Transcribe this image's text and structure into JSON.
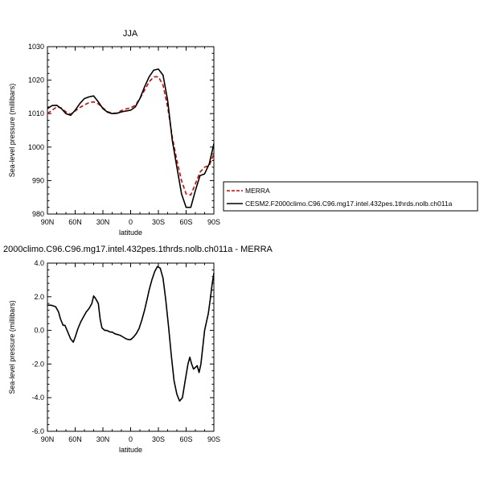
{
  "chart_data": [
    {
      "type": "line",
      "title": "JJA",
      "xlabel": "latitude",
      "ylabel": "Sea-level pressure (millibars)",
      "xlim": [
        -90,
        90
      ],
      "ylim": [
        980,
        1030
      ],
      "xticks": [
        -90,
        -60,
        -30,
        0,
        30,
        60,
        90
      ],
      "xtick_labels": [
        "90N",
        "60N",
        "30N",
        "0",
        "30S",
        "60S",
        "90S"
      ],
      "yticks": [
        980,
        990,
        1000,
        1010,
        1020,
        1030
      ],
      "ytick_labels": [
        "980",
        "990",
        "1000",
        "1010",
        "1020",
        "1030"
      ],
      "legend_position": "right",
      "series": [
        {
          "name": "MERRA",
          "color": "#dd0000",
          "style": "dashed",
          "x": [
            -90,
            -85,
            -80,
            -75,
            -70,
            -65,
            -60,
            -55,
            -50,
            -45,
            -40,
            -35,
            -30,
            -25,
            -20,
            -15,
            -10,
            -5,
            0,
            5,
            10,
            15,
            20,
            25,
            30,
            35,
            40,
            45,
            50,
            55,
            60,
            65,
            70,
            75,
            80,
            85,
            90
          ],
          "y": [
            1010,
            1011,
            1012,
            1011.7,
            1010.5,
            1009.8,
            1010.8,
            1011.8,
            1012.6,
            1013.3,
            1013.5,
            1012.9,
            1011.7,
            1010.6,
            1010.1,
            1010.2,
            1010.9,
            1011.4,
            1011.7,
            1012.5,
            1014.5,
            1017,
            1019.5,
            1021,
            1021,
            1018.5,
            1012,
            1003,
            996,
            990,
            986,
            985.7,
            989,
            992.5,
            994,
            994.5,
            998
          ]
        },
        {
          "name": "CESM2.F2000climo.C96.C96.mg17.intel.432pes.1thrds.nolb.ch011a",
          "color": "#000000",
          "style": "solid",
          "x": [
            -90,
            -85,
            -80,
            -75,
            -70,
            -65,
            -60,
            -55,
            -50,
            -45,
            -40,
            -35,
            -30,
            -25,
            -20,
            -15,
            -10,
            -5,
            0,
            5,
            10,
            15,
            20,
            25,
            30,
            35,
            40,
            45,
            50,
            55,
            60,
            65,
            70,
            75,
            80,
            85,
            90
          ],
          "y": [
            1011.5,
            1012.4,
            1012.5,
            1011.5,
            1010,
            1009.5,
            1011,
            1013,
            1014.5,
            1015,
            1015.3,
            1013.5,
            1011.5,
            1010.4,
            1010,
            1010.1,
            1010.5,
            1010.8,
            1011,
            1012,
            1014.5,
            1018,
            1021,
            1023,
            1023.3,
            1021.5,
            1014,
            1002,
            994,
            986,
            982,
            982,
            987,
            991.5,
            992,
            995,
            1001
          ]
        }
      ]
    },
    {
      "type": "line",
      "title": "2000climo.C96.C96.mg17.intel.432pes.1thrds.nolb.ch011a - MERRA",
      "xlabel": "latitude",
      "ylabel": "Sea-level pressure (millibars)",
      "xlim": [
        -90,
        90
      ],
      "ylim": [
        -6,
        4
      ],
      "xticks": [
        -90,
        -60,
        -30,
        0,
        30,
        60,
        90
      ],
      "xtick_labels": [
        "90N",
        "60N",
        "30N",
        "0",
        "30S",
        "60S",
        "90S"
      ],
      "yticks": [
        -6,
        -4,
        -2,
        0,
        2,
        4
      ],
      "ytick_labels": [
        "-6.0",
        "-4.0",
        "-2.0",
        "0.0",
        "2.0",
        "4.0"
      ],
      "series": [
        {
          "color": "#000000",
          "style": "solid",
          "x": [
            -90,
            -86,
            -81,
            -78,
            -76,
            -73,
            -71,
            -68,
            -65,
            -62,
            -60,
            -57,
            -54,
            -51,
            -48,
            -45,
            -42,
            -40,
            -38,
            -35,
            -33,
            -31,
            -28,
            -26,
            -24,
            -22,
            -20,
            -17,
            -14,
            -11,
            -8,
            -5,
            -2,
            0,
            3,
            6,
            9,
            12,
            15,
            18,
            20,
            23,
            26,
            29,
            32,
            35,
            38,
            41,
            44,
            47,
            50,
            53,
            56,
            59,
            62,
            64,
            66,
            68,
            70,
            72,
            74,
            76,
            78,
            80,
            82,
            84,
            86,
            88,
            90
          ],
          "y": [
            1.5,
            1.5,
            1.4,
            1.1,
            0.7,
            0.3,
            0.3,
            -0.1,
            -0.5,
            -0.7,
            -0.4,
            0.1,
            0.5,
            0.8,
            1.1,
            1.3,
            1.6,
            2.05,
            1.9,
            1.6,
            0.7,
            0.15,
            0.0,
            0.0,
            -0.05,
            -0.1,
            -0.1,
            -0.2,
            -0.25,
            -0.3,
            -0.4,
            -0.5,
            -0.55,
            -0.55,
            -0.4,
            -0.2,
            0.1,
            0.6,
            1.2,
            1.9,
            2.4,
            3.0,
            3.5,
            3.8,
            3.7,
            3.1,
            1.8,
            0.2,
            -1.5,
            -3.0,
            -3.8,
            -4.2,
            -4.0,
            -3.0,
            -2.0,
            -1.6,
            -2.0,
            -2.3,
            -2.2,
            -2.1,
            -2.5,
            -2.0,
            -1.0,
            0.0,
            0.5,
            1.0,
            1.8,
            2.7,
            3.4
          ]
        }
      ]
    }
  ]
}
